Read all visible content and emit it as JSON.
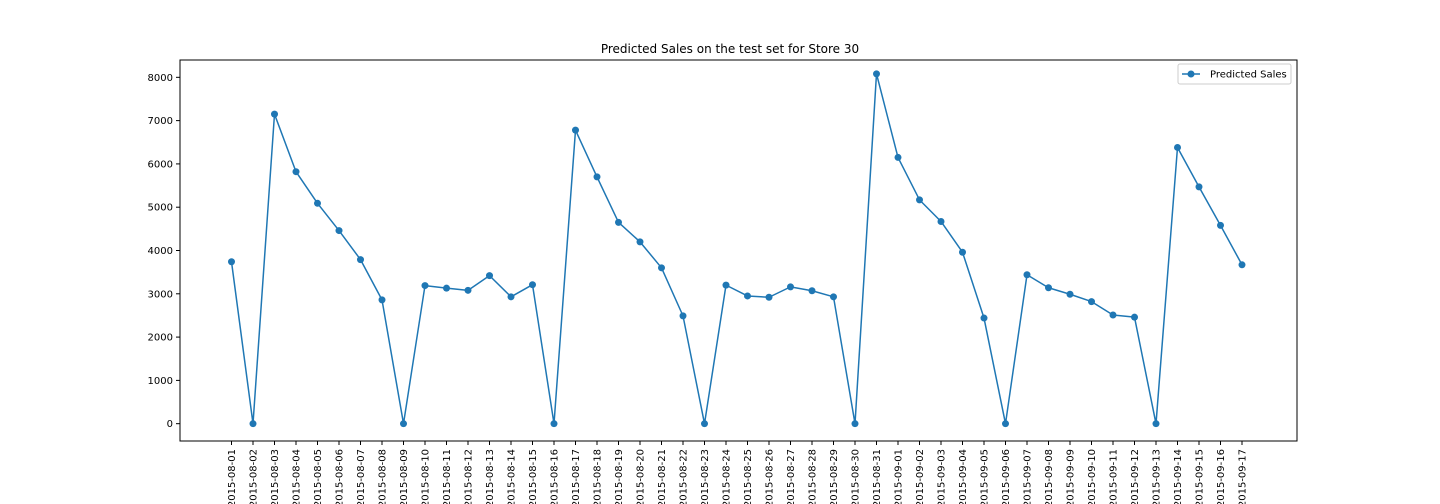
{
  "chart_data": {
    "type": "line",
    "title": "Predicted Sales on the test set for Store 30",
    "xlabel": "",
    "ylabel": "",
    "ylim": [
      -400,
      8400
    ],
    "yticks": [
      0,
      1000,
      2000,
      3000,
      4000,
      5000,
      6000,
      7000,
      8000
    ],
    "grid": false,
    "legend_position": "top-right",
    "x": [
      "2015-08-01",
      "2015-08-02",
      "2015-08-03",
      "2015-08-04",
      "2015-08-05",
      "2015-08-06",
      "2015-08-07",
      "2015-08-08",
      "2015-08-09",
      "2015-08-10",
      "2015-08-11",
      "2015-08-12",
      "2015-08-13",
      "2015-08-14",
      "2015-08-15",
      "2015-08-16",
      "2015-08-17",
      "2015-08-18",
      "2015-08-19",
      "2015-08-20",
      "2015-08-21",
      "2015-08-22",
      "2015-08-23",
      "2015-08-24",
      "2015-08-25",
      "2015-08-26",
      "2015-08-27",
      "2015-08-28",
      "2015-08-29",
      "2015-08-30",
      "2015-08-31",
      "2015-09-01",
      "2015-09-02",
      "2015-09-03",
      "2015-09-04",
      "2015-09-05",
      "2015-09-06",
      "2015-09-07",
      "2015-09-08",
      "2015-09-09",
      "2015-09-10",
      "2015-09-11",
      "2015-09-12",
      "2015-09-13",
      "2015-09-14",
      "2015-09-15",
      "2015-09-16",
      "2015-09-17"
    ],
    "series": [
      {
        "name": "Predicted Sales",
        "color": "#1f77b4",
        "marker": "circle",
        "values": [
          3740,
          0,
          7150,
          5820,
          5090,
          4460,
          3790,
          2860,
          0,
          3190,
          3130,
          3080,
          3420,
          2930,
          3210,
          0,
          6780,
          5700,
          4650,
          4200,
          3600,
          2490,
          0,
          3200,
          2950,
          2920,
          3160,
          3070,
          2930,
          0,
          8080,
          6150,
          5170,
          4670,
          3960,
          2440,
          0,
          3440,
          3140,
          2990,
          2820,
          2510,
          2460,
          0,
          6380,
          5470,
          4580,
          3670
        ]
      }
    ]
  }
}
